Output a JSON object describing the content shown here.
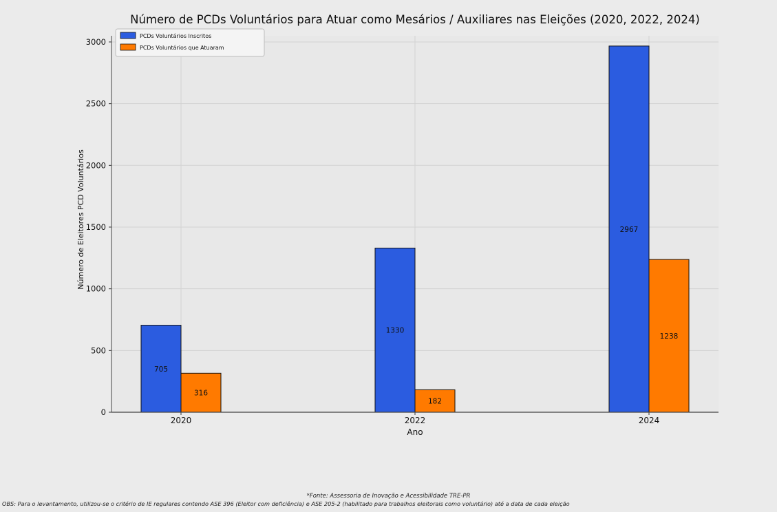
{
  "chart_data": {
    "type": "bar",
    "title": "Número de PCDs Voluntários para Atuar como Mesários / Auxiliares nas Eleições (2020, 2022, 2024)",
    "xlabel": "Ano",
    "ylabel": "Número de Eleitores PCD Voluntários",
    "categories": [
      "2020",
      "2022",
      "2024"
    ],
    "series": [
      {
        "name": "PCDs Voluntários Inscritos",
        "values": [
          705,
          1330,
          2967
        ],
        "color": "#2b5ce0"
      },
      {
        "name": "PCDs Voluntários que Atuaram",
        "values": [
          316,
          182,
          1238
        ],
        "color": "#ff7a00"
      }
    ],
    "ylim": [
      0,
      3050
    ],
    "yticks": [
      0,
      500,
      1000,
      1500,
      2000,
      2500,
      3000
    ],
    "grid": true,
    "legend_position": "top-left"
  },
  "notes": {
    "source": "*Fonte: Assessoria de Inovação e Acessibilidade TRE-PR",
    "obs": "OBS: Para o levantamento, utilizou-se o critério de IE regulares contendo ASE 396 (Eleitor com deficiência) e ASE 205-2 (habilitado para trabalhos eleitorais como voluntário) até a data de cada eleição"
  }
}
